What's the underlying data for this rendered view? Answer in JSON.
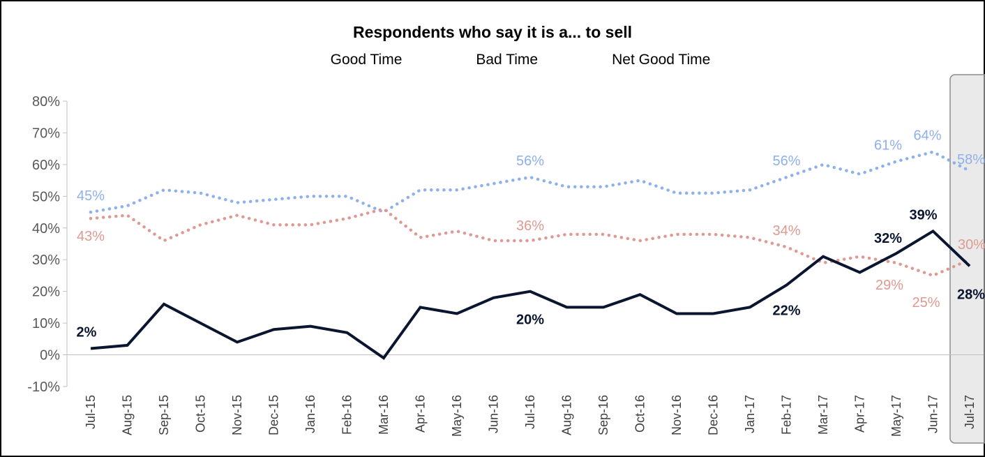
{
  "chart_data": {
    "type": "line",
    "title": "Respondents who say it is a... to sell",
    "xlabel": "",
    "ylabel": "",
    "categories": [
      "Jul-15",
      "Aug-15",
      "Sep-15",
      "Oct-15",
      "Nov-15",
      "Dec-15",
      "Jan-16",
      "Feb-16",
      "Mar-16",
      "Apr-16",
      "May-16",
      "Jun-16",
      "Jul-16",
      "Aug-16",
      "Sep-16",
      "Oct-16",
      "Nov-16",
      "Dec-16",
      "Jan-17",
      "Feb-17",
      "Mar-17",
      "Apr-17",
      "May-17",
      "Jun-17",
      "Jul-17"
    ],
    "y_ticks": [
      "80%",
      "70%",
      "60%",
      "50%",
      "40%",
      "30%",
      "20%",
      "10%",
      "0%",
      "-10%"
    ],
    "ylim": [
      -10,
      80
    ],
    "grid": false,
    "legend_position": "top-center",
    "highlighted_category": "Jul-17",
    "series": [
      {
        "name": "Good Time",
        "style": "dotted",
        "color": "#8EB0EC",
        "values": [
          45,
          47,
          52,
          51,
          48,
          49,
          50,
          50,
          45,
          52,
          52,
          54,
          56,
          53,
          53,
          55,
          51,
          51,
          52,
          56,
          60,
          57,
          61,
          64,
          58
        ],
        "data_labels": [
          {
            "index": 0,
            "text": "45%"
          },
          {
            "index": 12,
            "text": "56%"
          },
          {
            "index": 19,
            "text": "56%"
          },
          {
            "index": 22,
            "text": "61%"
          },
          {
            "index": 23,
            "text": "64%"
          },
          {
            "index": 24,
            "text": "58%"
          }
        ]
      },
      {
        "name": "Bad Time",
        "style": "dotted",
        "color": "#DE9A92",
        "values": [
          43,
          44,
          36,
          41,
          44,
          41,
          41,
          43,
          46,
          37,
          39,
          36,
          36,
          38,
          38,
          36,
          38,
          38,
          37,
          34,
          29,
          31,
          29,
          25,
          30
        ],
        "data_labels": [
          {
            "index": 0,
            "text": "43%"
          },
          {
            "index": 12,
            "text": "36%"
          },
          {
            "index": 19,
            "text": "34%"
          },
          {
            "index": 22,
            "text": "29%"
          },
          {
            "index": 23,
            "text": "25%"
          },
          {
            "index": 24,
            "text": "30%"
          }
        ]
      },
      {
        "name": "Net Good Time",
        "style": "solid",
        "color": "#0A1630",
        "values": [
          2,
          3,
          16,
          10,
          4,
          8,
          9,
          7,
          -1,
          15,
          13,
          18,
          20,
          15,
          15,
          19,
          13,
          13,
          15,
          22,
          31,
          26,
          32,
          39,
          28
        ],
        "data_labels": [
          {
            "index": 0,
            "text": "2%"
          },
          {
            "index": 12,
            "text": "20%"
          },
          {
            "index": 19,
            "text": "22%"
          },
          {
            "index": 22,
            "text": "32%"
          },
          {
            "index": 23,
            "text": "39%"
          },
          {
            "index": 24,
            "text": "28%"
          }
        ]
      }
    ]
  }
}
